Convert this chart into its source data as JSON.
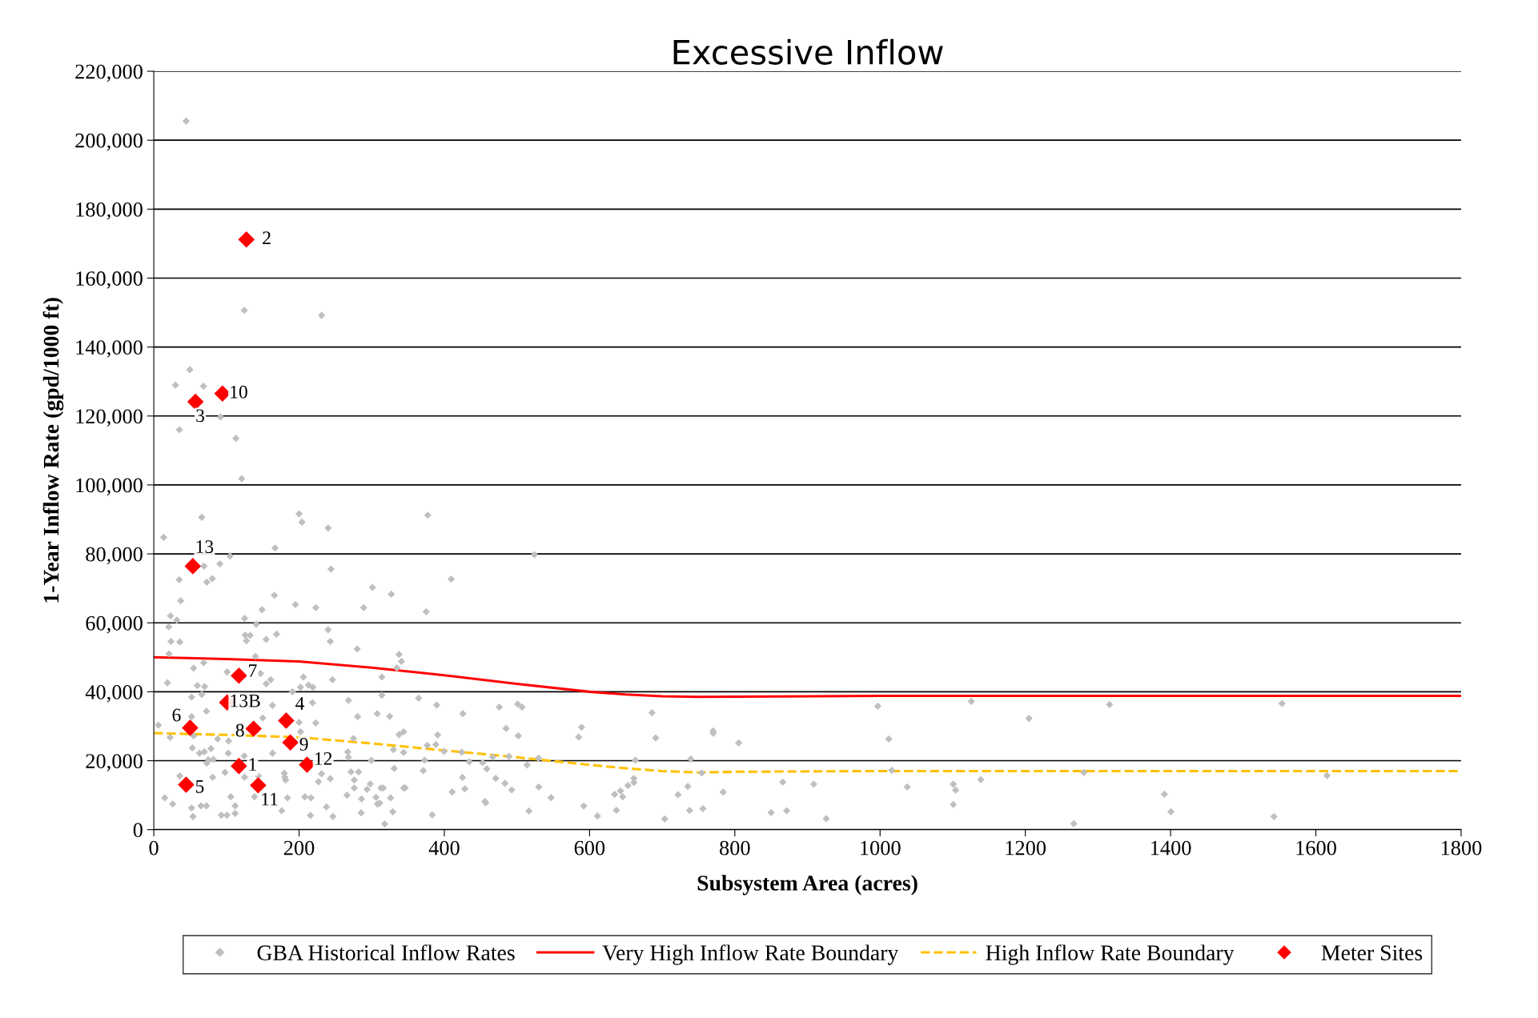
{
  "chart_data": {
    "type": "scatter",
    "title": "Excessive Inflow",
    "xlabel": "Subsystem Area (acres)",
    "ylabel": "1-Year Inflow Rate (gpd/1000 ft)",
    "xlim": [
      0,
      1800
    ],
    "xticks": [
      0,
      200,
      400,
      600,
      800,
      1000,
      1200,
      1400,
      1600,
      1800
    ],
    "ylim": [
      0,
      220000
    ],
    "yticks": [
      {
        "value": 0,
        "label": "0"
      },
      {
        "value": 20000,
        "label": "20,000"
      },
      {
        "value": 40000,
        "label": "40,000"
      },
      {
        "value": 60000,
        "label": "60,000"
      },
      {
        "value": 80000,
        "label": "80,000"
      },
      {
        "value": 100000,
        "label": "100,000"
      },
      {
        "value": 120000,
        "label": "120,000"
      },
      {
        "value": 140000,
        "label": "140,000"
      },
      {
        "value": 160000,
        "label": "160,000"
      },
      {
        "value": 180000,
        "label": "180,000"
      },
      {
        "value": 200000,
        "label": "200,000"
      },
      {
        "value": 220000,
        "label": "220,000"
      }
    ],
    "grid": "y",
    "legend": "bottom",
    "series": [
      {
        "name": "GBA Historical Inflow Rates",
        "marker": "diamond",
        "color": "#bfbfbf",
        "x": [
          44.5,
          124.6,
          231,
          49.6,
          29.8,
          68.4,
          92,
          35.3,
          113,
          121,
          13.6,
          66,
          200,
          204,
          240,
          167,
          105,
          91,
          69,
          80.5,
          73,
          35,
          37,
          244,
          166,
          195,
          223,
          301,
          327,
          289,
          23,
          31.6,
          20.6,
          125,
          141,
          149,
          169,
          126,
          132.7,
          127.5,
          154.7,
          240,
          243,
          23.6,
          35.7,
          21,
          280,
          337.7,
          341,
          140,
          68.7,
          54.8,
          101,
          334.7,
          18.8,
          60,
          70,
          66,
          52,
          147,
          154.7,
          161,
          206,
          202,
          213,
          219,
          246,
          191,
          314,
          314,
          268,
          307.6,
          324.8,
          280.7,
          218.6,
          223,
          200,
          6.3,
          72.4,
          163.5,
          150,
          52,
          202,
          337.7,
          344,
          22.5,
          54.8,
          88,
          103,
          275,
          330,
          344,
          53,
          78.7,
          69.5,
          62.9,
          102.5,
          163.5,
          73,
          75,
          82,
          124.6,
          179.7,
          180.4,
          181.5,
          231,
          267,
          268,
          271.5,
          282,
          299.5,
          331,
          81,
          35.7,
          98,
          125,
          138.6,
          106,
          15,
          26,
          65,
          72.4,
          52,
          54,
          112,
          112,
          93,
          100.7,
          176,
          208,
          216.4,
          215.7,
          226.7,
          243,
          237.7,
          246.6,
          276,
          276,
          266,
          286,
          293.6,
          298,
          285.5,
          306,
          308,
          311,
          312.7,
          316,
          326,
          329,
          318,
          344,
          184,
          144,
          377.3,
          524,
          409.5,
          375,
          364.6,
          389.5,
          425.5,
          475.7,
          501,
          507,
          686,
          390.8,
          485,
          501.8,
          589,
          585,
          691,
          770.4,
          376.5,
          388.3,
          399.7,
          424,
          372.8,
          434.4,
          452.8,
          458.5,
          466.7,
          489,
          514,
          529.6,
          371,
          425,
          346,
          428.3,
          470.8,
          483.4,
          492.8,
          410.8,
          456,
          457,
          530,
          547,
          516.5,
          383.4,
          592,
          610.8,
          637,
          634.5,
          642.6,
          645.5,
          652.8,
          661,
          661,
          663,
          739.4,
          721.8,
          735.3,
          737.7,
          756,
          754.5,
          703.5,
          770,
          805.3,
          996.8,
          1012,
          1125.6,
          1205,
          1316,
          1553.4,
          1016,
          784,
          866,
          908.6,
          850,
          871.4,
          925.8,
          1037.4,
          1100.8,
          1104,
          1100.8,
          1138.7,
          1280.6,
          1266.8,
          1391.5,
          1400.5,
          1542.3,
          1615.3
        ],
        "values": [
          205550,
          150650,
          149180,
          133440,
          128950,
          128640,
          119720,
          116000,
          113520,
          101810,
          84800,
          90600,
          91600,
          89200,
          87500,
          81700,
          79400,
          77100,
          76450,
          72800,
          71800,
          72500,
          66400,
          75600,
          68000,
          65300,
          64400,
          70250,
          68300,
          64400,
          62000,
          60800,
          58850,
          61300,
          59600,
          63800,
          56700,
          56450,
          56350,
          54800,
          55200,
          58000,
          54600,
          54600,
          54450,
          51000,
          52400,
          50850,
          48800,
          50250,
          48450,
          46840,
          45750,
          46900,
          42600,
          41800,
          41500,
          39240,
          38460,
          45300,
          42340,
          43500,
          44280,
          41300,
          41950,
          41300,
          43500,
          40000,
          44280,
          39000,
          37500,
          33650,
          32880,
          32800,
          36830,
          30950,
          31100,
          30300,
          34350,
          36060,
          32400,
          32800,
          28380,
          27600,
          28380,
          26750,
          27200,
          26300,
          25700,
          26450,
          23200,
          22400,
          23700,
          23500,
          22570,
          22180,
          22180,
          22180,
          19300,
          20250,
          20400,
          21400,
          16370,
          15200,
          14430,
          16200,
          22570,
          21020,
          16760,
          16760,
          20100,
          17760,
          15200,
          15600,
          16600,
          15200,
          9550,
          9550,
          9230,
          7450,
          6900,
          6900,
          6290,
          3800,
          6900,
          4730,
          4200,
          4200,
          5500,
          9550,
          9230,
          4120,
          13900,
          14800,
          6600,
          3800,
          14430,
          12100,
          10000,
          8920,
          11700,
          13260,
          4900,
          9390,
          7450,
          7690,
          12100,
          12100,
          9230,
          5200,
          1640,
          12100,
          9230,
          15600,
          91220,
          79760,
          72700,
          63220,
          38150,
          36170,
          33670,
          35560,
          36430,
          35560,
          33930,
          27470,
          29360,
          27210,
          29700,
          26860,
          26600,
          27980,
          24450,
          24710,
          22730,
          22470,
          20140,
          19710,
          19450,
          17650,
          21090,
          21260,
          18770,
          20750,
          17130,
          15150,
          12130,
          11870,
          14890,
          13430,
          11530,
          10930,
          8170,
          7830,
          12390,
          9290,
          5400,
          4290,
          6880,
          3950,
          5620,
          10230,
          11270,
          9550,
          12820,
          13680,
          14890,
          20140,
          20490,
          10150,
          12550,
          5580,
          6100,
          16440,
          3090,
          28650,
          25150,
          35800,
          26300,
          37200,
          32300,
          36300,
          36600,
          17200,
          10900,
          13800,
          13200,
          4950,
          5500,
          3200,
          12400,
          13200,
          11500,
          7300,
          14500,
          16600,
          1750,
          10300,
          5200,
          3800,
          15700
        ]
      },
      {
        "name": "Very High Inflow Rate Boundary",
        "type": "line",
        "marker": "none",
        "line_style": "solid",
        "color": "#ff0000",
        "x": [
          0,
          100,
          200,
          300,
          400,
          500,
          600,
          650,
          700,
          750,
          800,
          1000,
          1800
        ],
        "values": [
          50000,
          49500,
          48800,
          47000,
          44800,
          42300,
          40000,
          39200,
          38700,
          38500,
          38600,
          38800,
          38800
        ]
      },
      {
        "name": "High Inflow Rate Boundary",
        "type": "line",
        "marker": "none",
        "line_style": "dashed",
        "color": "#ffc000",
        "x": [
          0,
          100,
          200,
          300,
          400,
          500,
          600,
          650,
          700,
          750,
          800,
          1000,
          1800
        ],
        "values": [
          28000,
          27500,
          26800,
          25000,
          23000,
          21000,
          18800,
          17800,
          17000,
          16600,
          16800,
          17000,
          17000
        ]
      },
      {
        "name": "Meter Sites",
        "marker": "diamond",
        "color": "#ff0000",
        "x": [
          127.5,
          94.5,
          57.4,
          53.7,
          117.2,
          101,
          50,
          137.4,
          182.3,
          188,
          117.2,
          211,
          44.5,
          143.7
        ],
        "values": [
          171200,
          126500,
          124140,
          76450,
          44670,
          36910,
          29550,
          29310,
          31640,
          25280,
          18460,
          18850,
          13030,
          12880
        ]
      }
    ],
    "annotations": [
      {
        "text": "2",
        "x": 127.5,
        "y": 171200
      },
      {
        "text": "10",
        "x": 94.5,
        "y": 126500
      },
      {
        "text": "3",
        "x": 57.4,
        "y": 124140
      },
      {
        "text": "13",
        "x": 53.7,
        "y": 76450
      },
      {
        "text": "7",
        "x": 117.2,
        "y": 44670
      },
      {
        "text": "13B",
        "x": 101,
        "y": 36910
      },
      {
        "text": "6",
        "x": 50,
        "y": 29550
      },
      {
        "text": "8",
        "x": 137.4,
        "y": 29310
      },
      {
        "text": "4",
        "x": 182.3,
        "y": 31640
      },
      {
        "text": "9",
        "x": 188,
        "y": 25280
      },
      {
        "text": "1",
        "x": 117.2,
        "y": 18460
      },
      {
        "text": "12",
        "x": 211,
        "y": 18850
      },
      {
        "text": "5",
        "x": 44.5,
        "y": 13030
      },
      {
        "text": "11",
        "x": 143.7,
        "y": 12880
      }
    ]
  }
}
